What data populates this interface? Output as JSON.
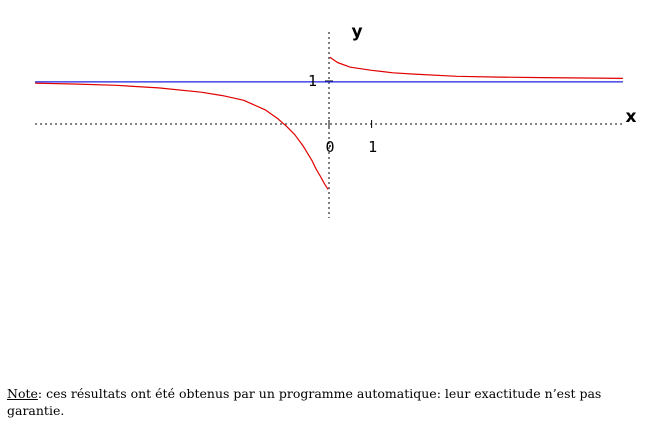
{
  "chart_data": {
    "type": "line",
    "xlabel": "x",
    "ylabel": "y",
    "x_ticks": [
      "0",
      "1"
    ],
    "y_ticks": [
      "1"
    ],
    "xlim": [
      -6.9,
      6.9
    ],
    "ylim": [
      -2.2,
      2.2
    ],
    "grid": false,
    "series": [
      {
        "role": "curve",
        "color": "#e00000",
        "branches": [
          {
            "x": [
              -6.9,
              -6.0,
              -5.0,
              -4.0,
              -3.0,
              -2.5,
              -2.0,
              -1.5,
              -1.2,
              -1.0,
              -0.8,
              -0.6,
              -0.4,
              -0.3,
              -0.2,
              -0.1,
              -0.02
            ],
            "y": [
              0.95,
              0.93,
              0.9,
              0.84,
              0.74,
              0.66,
              0.55,
              0.33,
              0.12,
              -0.05,
              -0.25,
              -0.52,
              -0.85,
              -1.05,
              -1.22,
              -1.4,
              -1.52
            ]
          },
          {
            "x": [
              0.02,
              0.2,
              0.5,
              1.0,
              1.5,
              2.0,
              3.0,
              4.0,
              5.0,
              6.0,
              6.9
            ],
            "y": [
              1.55,
              1.43,
              1.32,
              1.25,
              1.19,
              1.16,
              1.11,
              1.09,
              1.08,
              1.07,
              1.06
            ]
          }
        ]
      },
      {
        "role": "asymptote",
        "color": "#2020e0",
        "x": [
          -6.9,
          6.9
        ],
        "y": [
          0.98,
          0.98
        ]
      }
    ]
  },
  "note": {
    "label": "Note",
    "text": ": ces résultats ont été obtenus par un programme automatique: leur exactitude n’est pas garantie."
  }
}
